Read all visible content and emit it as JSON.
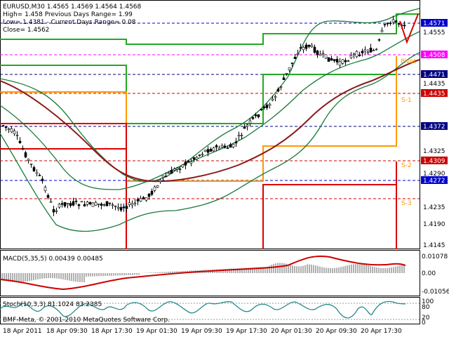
{
  "header": {
    "line1": "EURUSD,M30  1.4565 1.4569 1.4564 1.4568",
    "line2": "High= 1.458    Previous Days Range= 1.99",
    "line3": "Low= 1.4381 - Current Days Range= 0.08",
    "line4": "Close= 1.4562"
  },
  "price_axis": {
    "ticks": [
      "1.4555",
      "1.4435",
      "1.4325",
      "1.4290",
      "1.4235",
      "1.4190",
      "1.4145"
    ],
    "markers": [
      {
        "label": "1.4571",
        "color": "#0000cc"
      },
      {
        "label": "1.4508",
        "color": "#ff00ff"
      },
      {
        "label": "1.4471",
        "color": "#000080"
      },
      {
        "label": "1.4435",
        "color": "#cc0000"
      },
      {
        "label": "1.4372",
        "color": "#000080"
      },
      {
        "label": "1.4309",
        "color": "#cc0000"
      },
      {
        "label": "1.4272",
        "color": "#0000cc"
      }
    ]
  },
  "pivot_labels": {
    "pivot": "Pivot",
    "s1": "S-1",
    "s2": "S-2",
    "s3": "S-3"
  },
  "macd": {
    "title": "MACD(5,35,5) 0.00439 0.00485",
    "ticks": [
      "0.01078",
      "0.00",
      "-0.01056"
    ]
  },
  "stoch": {
    "title": "Stoch(10,3,3) 81.1024 83.2385",
    "ticks": [
      "100",
      "80",
      "20",
      "0"
    ]
  },
  "copyright": "BMF-Meta, © 2001-2010 MetaQuotes Software Corp.",
  "time_axis": [
    "18 Apr 2011",
    "18 Apr 09:30",
    "18 Apr 17:30",
    "19 Apr 01:30",
    "19 Apr 09:30",
    "19 Apr 17:30",
    "20 Apr 01:30",
    "20 Apr 09:30",
    "20 Apr 17:30"
  ],
  "colors": {
    "bull_candle": "#ffffff",
    "bear_candle": "#000000",
    "bollinger": "#1a7a3a",
    "ma": "#8b1a1a",
    "pivot_green": "#22aa22",
    "pivot_orange": "#ff9900",
    "pivot_red": "#dd0000",
    "macd_hist": "#b0b0b0",
    "macd_signal": "#cc0000",
    "stoch_main": "#2a8a8a"
  }
}
